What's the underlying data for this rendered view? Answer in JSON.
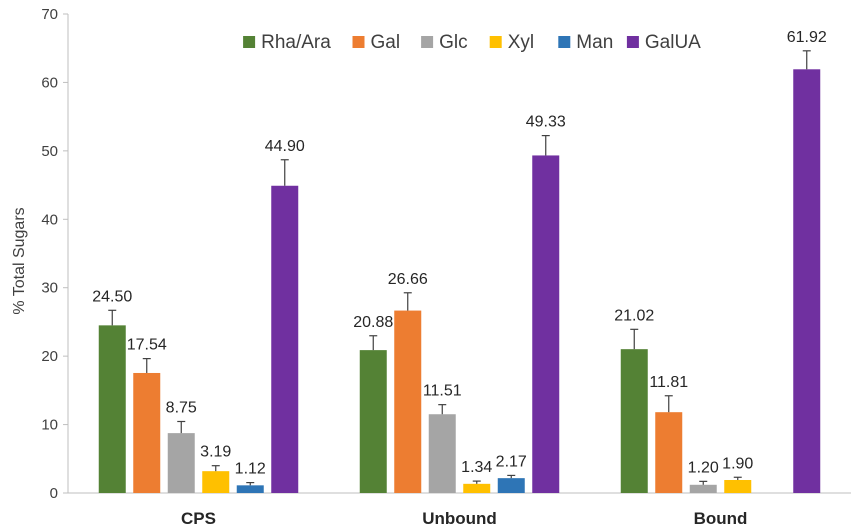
{
  "chart_data": {
    "type": "bar",
    "title": "",
    "xlabel": "",
    "ylabel": "% Total Sugars",
    "ylim": [
      0,
      70
    ],
    "yticks": [
      0,
      10,
      20,
      30,
      40,
      50,
      60,
      70
    ],
    "categories": [
      "CPS",
      "Unbound",
      "Bound"
    ],
    "legend_position": "top",
    "series": [
      {
        "name": "Rha/Ara",
        "color": "#548235",
        "values": [
          24.5,
          20.88,
          21.02
        ],
        "errors": [
          2.2,
          2.1,
          2.9
        ],
        "labels": [
          "24.50",
          "20.88",
          "21.02"
        ]
      },
      {
        "name": "Gal",
        "color": "#ED7D31",
        "values": [
          17.54,
          26.66,
          11.81
        ],
        "errors": [
          2.1,
          2.6,
          2.4
        ],
        "labels": [
          "17.54",
          "26.66",
          "11.81"
        ]
      },
      {
        "name": "Glc",
        "color": "#A5A5A5",
        "values": [
          8.75,
          11.51,
          1.2
        ],
        "errors": [
          1.7,
          1.4,
          0.5
        ],
        "labels": [
          "8.75",
          "11.51",
          "1.20"
        ]
      },
      {
        "name": "Xyl",
        "color": "#FFC000",
        "values": [
          3.19,
          1.34,
          1.9
        ],
        "errors": [
          0.8,
          0.4,
          0.4
        ],
        "labels": [
          "3.19",
          "1.34",
          "1.90"
        ]
      },
      {
        "name": "Man",
        "color": "#2E75B6",
        "values": [
          1.12,
          2.17,
          0
        ],
        "errors": [
          0.4,
          0.4,
          0
        ],
        "labels": [
          "1.12",
          "2.17",
          ""
        ]
      },
      {
        "name": "GalUA",
        "color": "#7030A0",
        "values": [
          44.9,
          49.33,
          61.92
        ],
        "errors": [
          3.8,
          2.9,
          2.7
        ],
        "labels": [
          "44.90",
          "49.33",
          "61.92"
        ]
      }
    ]
  }
}
